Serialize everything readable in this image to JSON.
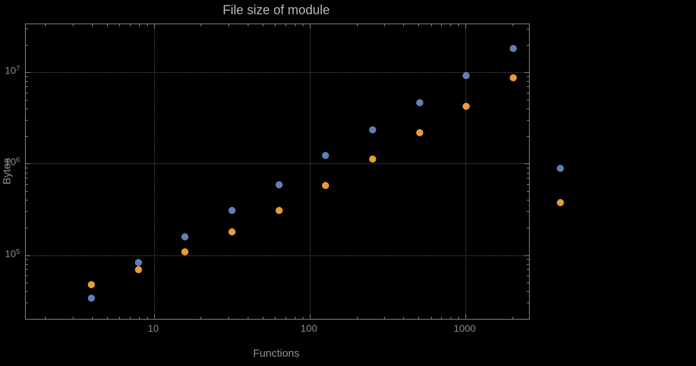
{
  "page": {
    "background_color": "#000000",
    "frame_color": "#858585",
    "grid_color": "#575757",
    "tick_label_color": "#8b8b8b",
    "title_color": "#b8b8b8"
  },
  "chart_data": {
    "type": "scatter",
    "title": "File size of module",
    "xlabel": "Functions",
    "ylabel": "Bytes",
    "x_scale": "log",
    "y_scale": "log",
    "xlim": [
      1.5,
      2560
    ],
    "ylim": [
      20000,
      33500000
    ],
    "grid": true,
    "legend": "none",
    "x_major_ticks": [
      {
        "value": 10,
        "label": "10"
      },
      {
        "value": 100,
        "label": "100"
      },
      {
        "value": 1000,
        "label": "1000"
      }
    ],
    "y_major_ticks": [
      {
        "value": 100000,
        "base": "10",
        "exponent": "5"
      },
      {
        "value": 1000000,
        "base": "10",
        "exponent": "6"
      },
      {
        "value": 10000000,
        "base": "10",
        "exponent": "7"
      }
    ],
    "x": [
      4,
      8,
      16,
      32,
      64,
      128,
      256,
      512,
      1024,
      2048,
      4096
    ],
    "series": [
      {
        "name": "blue",
        "color": "#5e81b5",
        "values": [
          33000,
          82000,
          155000,
          300000,
          580000,
          1200000,
          2300000,
          4600000,
          9000000,
          18000000,
          880000
        ]
      },
      {
        "name": "orange",
        "color": "#e2a033",
        "values": [
          47000,
          68000,
          107000,
          175000,
          300000,
          570000,
          1100000,
          2150000,
          4200000,
          8500000,
          370000
        ]
      }
    ]
  }
}
